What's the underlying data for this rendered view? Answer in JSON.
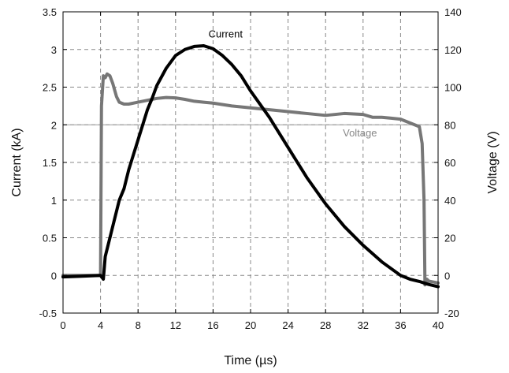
{
  "chart_data": {
    "type": "line",
    "title": "",
    "xlabel": "Time (µs)",
    "ylabel_left": "Current (kA)",
    "ylabel_right": "Voltage (V)",
    "xlim": [
      0,
      40
    ],
    "ylim_left": [
      -0.5,
      3.5
    ],
    "ylim_right": [
      -20,
      140
    ],
    "x_ticks": [
      "0",
      "4",
      "8",
      "12",
      "16",
      "20",
      "24",
      "28",
      "32",
      "36",
      "40"
    ],
    "y_left_ticks": [
      "-0.5",
      "0",
      "0.5",
      "1",
      "1.5",
      "2",
      "2.5",
      "3",
      "3.5"
    ],
    "y_right_ticks": [
      "-20",
      "0",
      "20",
      "40",
      "60",
      "80",
      "100",
      "120",
      "140"
    ],
    "grid": true,
    "series": [
      {
        "name": "Current",
        "axis": "left",
        "color": "#000000",
        "x": [
          0,
          2,
          4,
          4.3,
          4.5,
          5,
          5.5,
          6,
          6.5,
          7,
          7.5,
          8,
          8.5,
          9,
          9.5,
          10,
          11,
          12,
          13,
          14,
          15,
          16,
          17,
          18,
          19,
          20,
          22,
          24,
          26,
          28,
          30,
          32,
          34,
          36,
          37,
          38,
          38.5,
          39,
          40
        ],
        "y": [
          -0.02,
          -0.01,
          0.0,
          -0.05,
          0.25,
          0.5,
          0.75,
          1.0,
          1.15,
          1.4,
          1.6,
          1.8,
          2.0,
          2.2,
          2.35,
          2.52,
          2.75,
          2.92,
          3.0,
          3.04,
          3.05,
          3.01,
          2.92,
          2.8,
          2.65,
          2.45,
          2.1,
          1.7,
          1.3,
          0.95,
          0.65,
          0.4,
          0.18,
          0.0,
          -0.05,
          -0.08,
          -0.1,
          -0.12,
          -0.15
        ]
      },
      {
        "name": "Voltage",
        "axis": "right",
        "color": "#777777",
        "x": [
          0,
          2,
          4,
          4.1,
          4.3,
          4.5,
          4.7,
          5.0,
          5.3,
          5.7,
          6.0,
          6.5,
          7,
          8,
          9,
          10,
          11,
          12,
          13,
          14,
          15,
          16,
          18,
          20,
          22,
          24,
          26,
          28,
          30,
          32,
          33,
          34,
          35,
          36,
          37,
          38,
          38.3,
          38.5,
          38.6,
          38.8,
          39.0,
          40
        ],
        "y": [
          0,
          0,
          0,
          90,
          106,
          105,
          107,
          106,
          102,
          95,
          92,
          91,
          91,
          92,
          93,
          94,
          94.5,
          94.3,
          93.5,
          92.5,
          92,
          91.5,
          90,
          89,
          88,
          87,
          86,
          85,
          86,
          85.5,
          84,
          84,
          83.5,
          83,
          81,
          79,
          70,
          40,
          -5,
          -2,
          -3,
          -4
        ]
      }
    ],
    "annotations": [
      {
        "text": "Current",
        "x": 17,
        "y_left": 3.2
      },
      {
        "text": "Voltage",
        "x": 32,
        "y_left": 1.97
      }
    ],
    "reference_line": {
      "axis": "left",
      "y": 2
    }
  }
}
